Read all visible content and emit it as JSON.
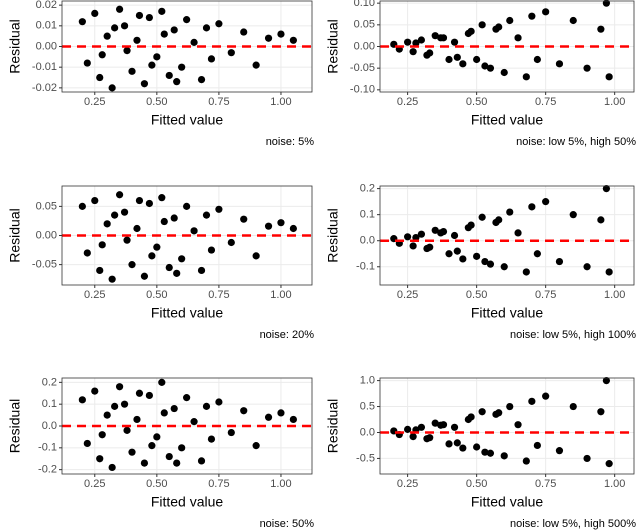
{
  "chart_data": [
    {
      "type": "scatter",
      "xlabel": "Fitted value",
      "ylabel": "Residual",
      "caption": "noise: 5%",
      "color": "#000000",
      "hline": 0,
      "hline_color": "#ff0000",
      "grid": true,
      "xlim": [
        0.118,
        1.125
      ],
      "ylim": [
        -0.022,
        0.022
      ],
      "xticks": [
        {
          "value": 0.25,
          "label": "0.25"
        },
        {
          "value": 0.5,
          "label": "0.50"
        },
        {
          "value": 0.75,
          "label": "0.75"
        },
        {
          "value": 1,
          "label": "1.00"
        }
      ],
      "yticks": [
        {
          "value": -0.02,
          "label": "-0.02"
        },
        {
          "value": -0.01,
          "label": "-0.01"
        },
        {
          "value": 0,
          "label": "0.00"
        },
        {
          "value": 0.01,
          "label": "0.01"
        },
        {
          "value": 0.02,
          "label": "0.02"
        }
      ],
      "x": [
        0.2,
        0.22,
        0.25,
        0.27,
        0.3,
        0.32,
        0.35,
        0.37,
        0.4,
        0.42,
        0.45,
        0.47,
        0.5,
        0.52,
        0.55,
        0.57,
        0.6,
        0.62,
        0.65,
        0.68,
        0.7,
        0.72,
        0.75,
        0.8,
        0.85,
        0.9,
        0.95,
        1.0,
        1.05,
        0.28,
        0.33,
        0.38,
        0.43,
        0.48,
        0.53,
        0.58
      ],
      "values": [
        0.012,
        -0.008,
        0.016,
        -0.015,
        0.005,
        -0.02,
        0.018,
        0.01,
        -0.012,
        0.003,
        -0.018,
        0.014,
        -0.005,
        0.017,
        -0.014,
        0.008,
        -0.01,
        0.013,
        0.002,
        -0.016,
        0.009,
        -0.006,
        0.011,
        -0.003,
        0.007,
        -0.009,
        0.004,
        0.006,
        0.003,
        -0.004,
        0.009,
        -0.002,
        0.015,
        -0.009,
        0.006,
        -0.017
      ]
    },
    {
      "type": "scatter",
      "xlabel": "Fitted value",
      "ylabel": "Residual",
      "caption": "noise: low 5%, high 50%",
      "color": "#000000",
      "hline": 0,
      "hline_color": "#ff0000",
      "grid": true,
      "xlim": [
        0.15,
        1.07
      ],
      "ylim": [
        -0.105,
        0.105
      ],
      "xticks": [
        {
          "value": 0.25,
          "label": "0.25"
        },
        {
          "value": 0.5,
          "label": "0.50"
        },
        {
          "value": 0.75,
          "label": "0.75"
        },
        {
          "value": 1,
          "label": "1.00"
        }
      ],
      "yticks": [
        {
          "value": -0.1,
          "label": "-0.10"
        },
        {
          "value": -0.05,
          "label": "-0.05"
        },
        {
          "value": 0,
          "label": "0.00"
        },
        {
          "value": 0.05,
          "label": "0.05"
        },
        {
          "value": 0.1,
          "label": "0.10"
        }
      ],
      "x": [
        0.2,
        0.22,
        0.25,
        0.27,
        0.3,
        0.32,
        0.35,
        0.37,
        0.4,
        0.42,
        0.45,
        0.47,
        0.5,
        0.52,
        0.55,
        0.57,
        0.6,
        0.62,
        0.65,
        0.68,
        0.7,
        0.72,
        0.75,
        0.8,
        0.85,
        0.9,
        0.95,
        0.97,
        0.98,
        0.28,
        0.33,
        0.38,
        0.43,
        0.48,
        0.53,
        0.58
      ],
      "values": [
        0.005,
        -0.006,
        0.01,
        -0.012,
        0.015,
        -0.02,
        0.025,
        0.02,
        -0.03,
        0.01,
        -0.04,
        0.03,
        -0.03,
        0.05,
        -0.05,
        0.04,
        -0.06,
        0.06,
        0.02,
        -0.07,
        0.07,
        -0.03,
        0.08,
        -0.04,
        0.06,
        -0.05,
        0.04,
        0.1,
        -0.07,
        0.008,
        -0.015,
        0.02,
        -0.025,
        0.035,
        -0.045,
        0.045
      ]
    },
    {
      "type": "scatter",
      "xlabel": "Fitted value",
      "ylabel": "Residual",
      "caption": "noise: 20%",
      "color": "#000000",
      "hline": 0,
      "hline_color": "#ff0000",
      "grid": true,
      "xlim": [
        0.118,
        1.125
      ],
      "ylim": [
        -0.085,
        0.085
      ],
      "xticks": [
        {
          "value": 0.25,
          "label": "0.25"
        },
        {
          "value": 0.5,
          "label": "0.50"
        },
        {
          "value": 0.75,
          "label": "0.75"
        },
        {
          "value": 1,
          "label": "1.00"
        }
      ],
      "yticks": [
        {
          "value": -0.05,
          "label": "-0.05"
        },
        {
          "value": 0,
          "label": "0.00"
        },
        {
          "value": 0.05,
          "label": "0.05"
        }
      ],
      "x": [
        0.2,
        0.22,
        0.25,
        0.27,
        0.3,
        0.32,
        0.35,
        0.37,
        0.4,
        0.42,
        0.45,
        0.47,
        0.5,
        0.52,
        0.55,
        0.57,
        0.6,
        0.62,
        0.65,
        0.68,
        0.7,
        0.72,
        0.75,
        0.8,
        0.85,
        0.9,
        0.95,
        1.0,
        1.05,
        0.28,
        0.33,
        0.38,
        0.43,
        0.48,
        0.53,
        0.58
      ],
      "values": [
        0.05,
        -0.03,
        0.06,
        -0.06,
        0.02,
        -0.075,
        0.07,
        0.04,
        -0.05,
        0.012,
        -0.07,
        0.055,
        -0.02,
        0.065,
        -0.055,
        0.03,
        -0.04,
        0.05,
        0.008,
        -0.06,
        0.035,
        -0.025,
        0.045,
        -0.012,
        0.028,
        -0.035,
        0.016,
        0.022,
        0.012,
        -0.016,
        0.035,
        -0.008,
        0.06,
        -0.035,
        0.024,
        -0.065
      ]
    },
    {
      "type": "scatter",
      "xlabel": "Fitted value",
      "ylabel": "Residual",
      "caption": "noise: low 5%, high 100%",
      "color": "#000000",
      "hline": 0,
      "hline_color": "#ff0000",
      "grid": true,
      "xlim": [
        0.15,
        1.07
      ],
      "ylim": [
        -0.17,
        0.21
      ],
      "xticks": [
        {
          "value": 0.25,
          "label": "0.25"
        },
        {
          "value": 0.5,
          "label": "0.50"
        },
        {
          "value": 0.75,
          "label": "0.75"
        },
        {
          "value": 1,
          "label": "1.00"
        }
      ],
      "yticks": [
        {
          "value": -0.1,
          "label": "-0.1"
        },
        {
          "value": 0,
          "label": "0.0"
        },
        {
          "value": 0.1,
          "label": "0.1"
        },
        {
          "value": 0.2,
          "label": "0.2"
        }
      ],
      "x": [
        0.2,
        0.22,
        0.25,
        0.27,
        0.3,
        0.32,
        0.35,
        0.37,
        0.4,
        0.42,
        0.45,
        0.47,
        0.5,
        0.52,
        0.55,
        0.57,
        0.6,
        0.62,
        0.65,
        0.68,
        0.7,
        0.72,
        0.75,
        0.8,
        0.85,
        0.9,
        0.95,
        0.97,
        0.98,
        0.28,
        0.33,
        0.38,
        0.43,
        0.48,
        0.53,
        0.58
      ],
      "values": [
        0.008,
        -0.01,
        0.015,
        -0.02,
        0.025,
        -0.03,
        0.04,
        0.03,
        -0.05,
        0.02,
        -0.07,
        0.05,
        -0.06,
        0.09,
        -0.09,
        0.07,
        -0.1,
        0.11,
        0.03,
        -0.12,
        0.13,
        -0.05,
        0.15,
        -0.08,
        0.1,
        -0.1,
        0.08,
        0.2,
        -0.12,
        0.012,
        -0.025,
        0.035,
        -0.04,
        0.06,
        -0.08,
        0.08
      ]
    },
    {
      "type": "scatter",
      "xlabel": "Fitted value",
      "ylabel": "Residual",
      "caption": "noise: 50%",
      "color": "#000000",
      "hline": 0,
      "hline_color": "#ff0000",
      "grid": true,
      "xlim": [
        0.118,
        1.125
      ],
      "ylim": [
        -0.22,
        0.22
      ],
      "xticks": [
        {
          "value": 0.25,
          "label": "0.25"
        },
        {
          "value": 0.5,
          "label": "0.50"
        },
        {
          "value": 0.75,
          "label": "0.75"
        },
        {
          "value": 1,
          "label": "1.00"
        }
      ],
      "yticks": [
        {
          "value": -0.2,
          "label": "-0.2"
        },
        {
          "value": -0.1,
          "label": "-0.1"
        },
        {
          "value": 0,
          "label": "0.0"
        },
        {
          "value": 0.1,
          "label": "0.1"
        },
        {
          "value": 0.2,
          "label": "0.2"
        }
      ],
      "x": [
        0.2,
        0.22,
        0.25,
        0.27,
        0.3,
        0.32,
        0.35,
        0.37,
        0.4,
        0.42,
        0.45,
        0.47,
        0.5,
        0.52,
        0.55,
        0.57,
        0.6,
        0.62,
        0.65,
        0.68,
        0.7,
        0.72,
        0.75,
        0.8,
        0.85,
        0.9,
        0.95,
        1.0,
        1.05,
        0.28,
        0.33,
        0.38,
        0.43,
        0.48,
        0.53,
        0.58
      ],
      "values": [
        0.12,
        -0.08,
        0.16,
        -0.15,
        0.05,
        -0.19,
        0.18,
        0.1,
        -0.12,
        0.03,
        -0.17,
        0.14,
        -0.05,
        0.2,
        -0.14,
        0.08,
        -0.1,
        0.13,
        0.02,
        -0.16,
        0.09,
        -0.06,
        0.11,
        -0.03,
        0.07,
        -0.09,
        0.04,
        0.06,
        0.03,
        -0.04,
        0.09,
        -0.02,
        0.15,
        -0.09,
        0.06,
        -0.17
      ]
    },
    {
      "type": "scatter",
      "xlabel": "Fitted value",
      "ylabel": "Residual",
      "caption": "noise: low 5%, high 500%",
      "color": "#000000",
      "hline": 0,
      "hline_color": "#ff0000",
      "grid": true,
      "xlim": [
        0.15,
        1.07
      ],
      "ylim": [
        -0.8,
        1.05
      ],
      "xticks": [
        {
          "value": 0.25,
          "label": "0.25"
        },
        {
          "value": 0.5,
          "label": "0.50"
        },
        {
          "value": 0.75,
          "label": "0.75"
        },
        {
          "value": 1,
          "label": "1.00"
        }
      ],
      "yticks": [
        {
          "value": -0.5,
          "label": "-0.5"
        },
        {
          "value": 0,
          "label": "0.0"
        },
        {
          "value": 0.5,
          "label": "0.5"
        },
        {
          "value": 1,
          "label": "1.0"
        }
      ],
      "x": [
        0.2,
        0.22,
        0.25,
        0.27,
        0.3,
        0.32,
        0.35,
        0.37,
        0.4,
        0.42,
        0.45,
        0.47,
        0.5,
        0.52,
        0.55,
        0.57,
        0.6,
        0.62,
        0.65,
        0.68,
        0.7,
        0.72,
        0.75,
        0.8,
        0.85,
        0.9,
        0.95,
        0.97,
        0.98,
        0.28,
        0.33,
        0.38,
        0.43,
        0.48,
        0.53,
        0.58
      ],
      "values": [
        0.03,
        -0.04,
        0.06,
        -0.08,
        0.1,
        -0.12,
        0.18,
        0.14,
        -0.22,
        0.1,
        -0.3,
        0.25,
        -0.28,
        0.4,
        -0.4,
        0.35,
        -0.45,
        0.5,
        0.15,
        -0.55,
        0.6,
        -0.25,
        0.7,
        -0.35,
        0.5,
        -0.5,
        0.4,
        1.0,
        -0.6,
        0.05,
        -0.1,
        0.15,
        -0.2,
        0.3,
        -0.38,
        0.38
      ]
    }
  ]
}
